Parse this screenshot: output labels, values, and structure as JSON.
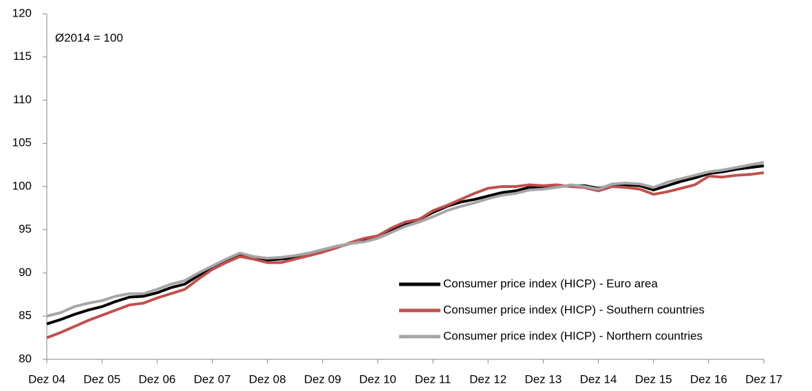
{
  "chart_data": {
    "type": "line",
    "annotation": "Ø2014 = 100",
    "categories": [
      "Dez 04",
      null,
      null,
      null,
      "Dez 05",
      null,
      null,
      null,
      "Dez 06",
      null,
      null,
      null,
      "Dez 07",
      null,
      null,
      null,
      "Dez 08",
      null,
      null,
      null,
      "Dez 09",
      null,
      null,
      null,
      "Dez 10",
      null,
      null,
      null,
      "Dez 11",
      null,
      null,
      null,
      "Dez 12",
      null,
      null,
      null,
      "Dez 13",
      null,
      null,
      null,
      "Dez 14",
      null,
      null,
      null,
      "Dez 15",
      null,
      null,
      null,
      "Dez 16",
      null,
      null,
      null,
      "Dez 17"
    ],
    "series": [
      {
        "name": "Consumer price index (HICP) - Euro area",
        "color": "#000000",
        "values": [
          84.1,
          84.6,
          85.2,
          85.7,
          86.1,
          86.7,
          87.2,
          87.3,
          87.7,
          88.3,
          88.7,
          89.7,
          90.6,
          91.4,
          92.1,
          91.8,
          91.5,
          91.6,
          91.8,
          92.1,
          92.5,
          93.0,
          93.4,
          93.7,
          94.1,
          95.0,
          95.7,
          96.2,
          97.0,
          97.7,
          98.2,
          98.5,
          98.9,
          99.3,
          99.5,
          99.9,
          100.0,
          100.0,
          100.1,
          100.1,
          99.8,
          100.1,
          100.2,
          100.1,
          99.6,
          100.1,
          100.6,
          101.0,
          101.5,
          101.7,
          102.0,
          102.2,
          102.4
        ]
      },
      {
        "name": "Consumer price index (HICP) - Southern countries",
        "color": "#c0504d",
        "values": [
          82.5,
          83.1,
          83.8,
          84.5,
          85.1,
          85.7,
          86.3,
          86.5,
          87.1,
          87.6,
          88.1,
          89.3,
          90.4,
          91.2,
          91.9,
          91.6,
          91.2,
          91.2,
          91.6,
          92.0,
          92.4,
          92.9,
          93.5,
          94.0,
          94.3,
          95.2,
          95.9,
          96.2,
          97.2,
          97.8,
          98.5,
          99.2,
          99.8,
          100.0,
          100.0,
          100.2,
          100.1,
          100.2,
          100.0,
          99.9,
          99.5,
          100.0,
          99.9,
          99.7,
          99.1,
          99.4,
          99.8,
          100.2,
          101.2,
          101.1,
          101.3,
          101.4,
          101.6
        ]
      },
      {
        "name": "Consumer price index (HICP) - Northern countries",
        "color": "#a6a6a6",
        "values": [
          85.0,
          85.4,
          86.1,
          86.5,
          86.8,
          87.3,
          87.6,
          87.6,
          88.1,
          88.7,
          89.1,
          90.0,
          90.8,
          91.6,
          92.3,
          91.9,
          91.7,
          91.8,
          92.0,
          92.3,
          92.7,
          93.1,
          93.4,
          93.6,
          94.0,
          94.7,
          95.4,
          95.9,
          96.5,
          97.2,
          97.7,
          98.1,
          98.6,
          99.0,
          99.2,
          99.6,
          99.7,
          99.9,
          100.2,
          100.0,
          99.7,
          100.3,
          100.4,
          100.3,
          99.9,
          100.5,
          100.9,
          101.3,
          101.7,
          101.9,
          102.2,
          102.5,
          102.8
        ]
      }
    ],
    "ylim": [
      80,
      120
    ],
    "yticks": [
      80,
      85,
      90,
      95,
      100,
      105,
      110,
      115,
      120
    ],
    "grid": false,
    "legend": "bottom-right"
  }
}
